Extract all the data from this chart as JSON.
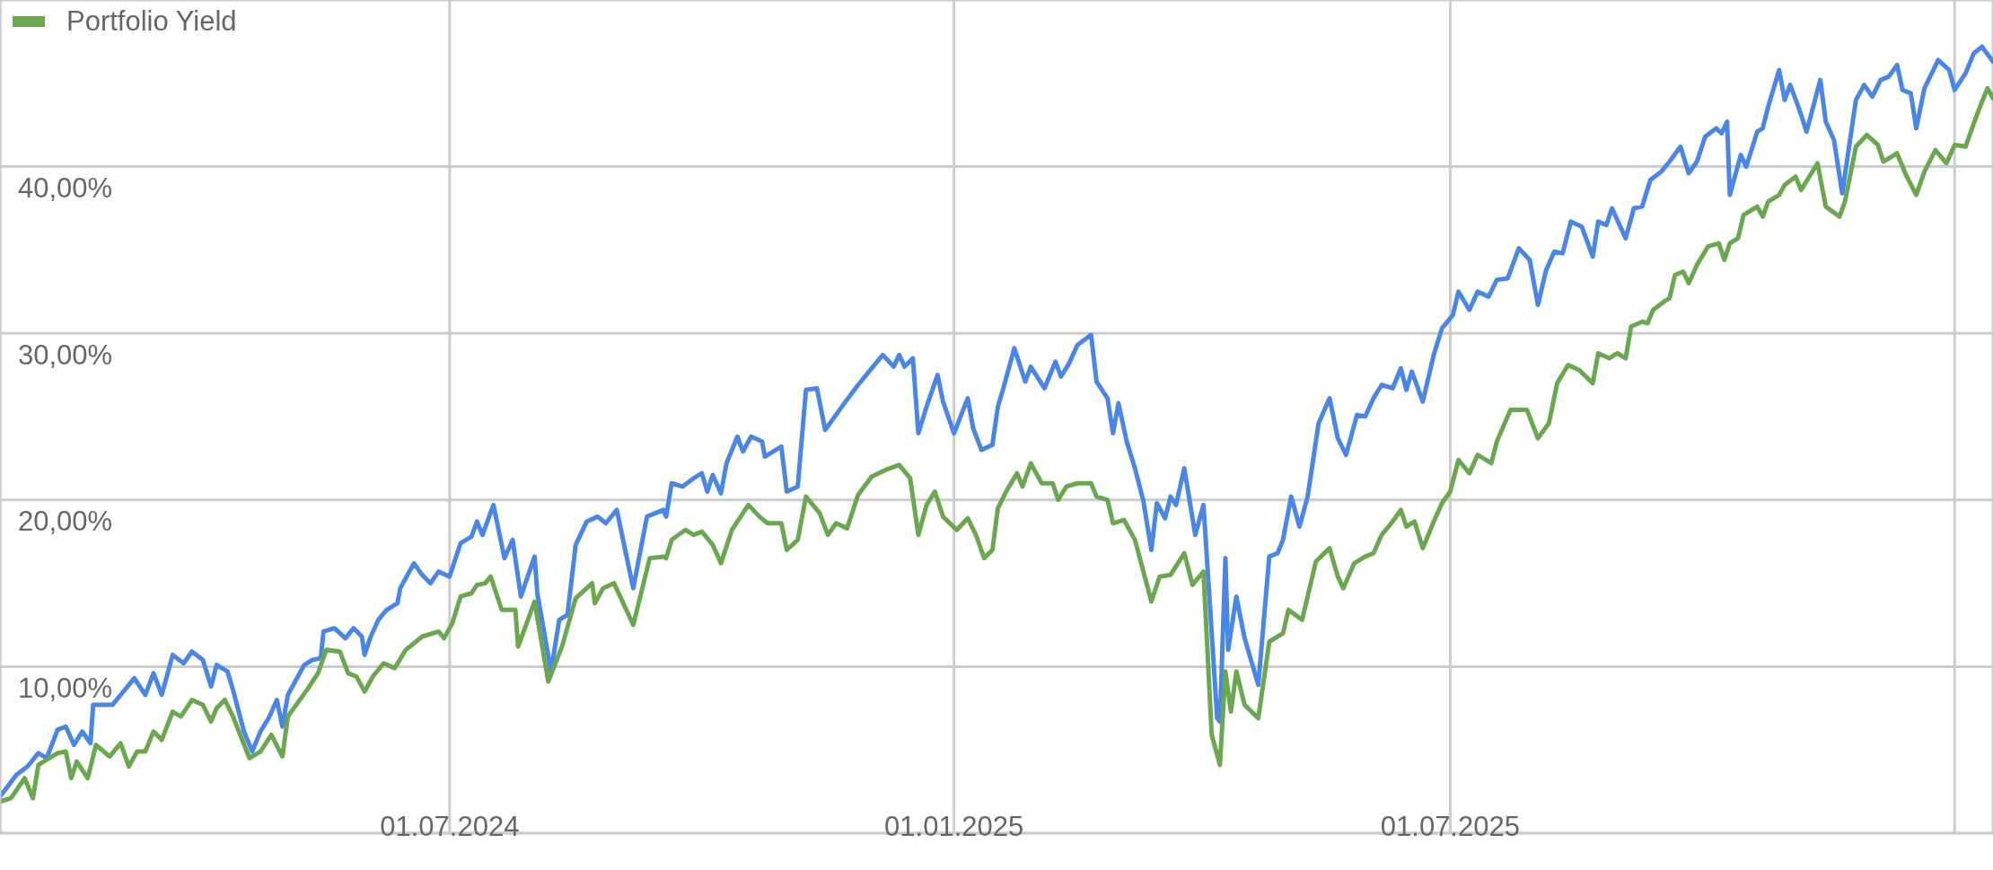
{
  "chart_data": {
    "type": "line",
    "series": [
      {
        "color": "#4a86e8",
        "x": [
          "2024-01-19",
          "2024-01-25",
          "2024-01-29",
          "2024-02-02",
          "2024-02-05",
          "2024-02-09",
          "2024-02-12",
          "2024-02-15",
          "2024-02-18",
          "2024-02-21",
          "2024-02-22",
          "2024-02-29",
          "2024-03-08",
          "2024-03-12",
          "2024-03-15",
          "2024-03-18",
          "2024-03-22",
          "2024-03-26",
          "2024-03-29",
          "2024-04-02",
          "2024-04-05",
          "2024-04-07",
          "2024-04-11",
          "2024-04-13",
          "2024-04-17",
          "2024-04-20",
          "2024-04-23",
          "2024-04-26",
          "2024-04-29",
          "2024-05-01",
          "2024-05-03",
          "2024-05-09",
          "2024-05-12",
          "2024-05-15",
          "2024-05-16",
          "2024-05-20",
          "2024-05-24",
          "2024-05-27",
          "2024-05-30",
          "2024-05-31",
          "2024-06-02",
          "2024-06-05",
          "2024-06-08",
          "2024-06-12",
          "2024-06-13",
          "2024-06-18",
          "2024-06-21",
          "2024-06-24",
          "2024-06-27",
          "2024-07-01",
          "2024-07-05",
          "2024-07-09",
          "2024-07-11",
          "2024-07-13",
          "2024-07-17",
          "2024-07-21",
          "2024-07-24",
          "2024-07-27",
          "2024-08-01",
          "2024-08-02",
          "2024-08-07",
          "2024-08-10",
          "2024-08-13",
          "2024-08-16",
          "2024-08-20",
          "2024-08-24",
          "2024-08-27",
          "2024-08-31",
          "2024-09-06",
          "2024-09-11",
          "2024-09-17",
          "2024-09-18",
          "2024-09-20",
          "2024-09-24",
          "2024-09-28",
          "2024-10-01",
          "2024-10-03",
          "2024-10-05",
          "2024-10-08",
          "2024-10-10",
          "2024-10-14",
          "2024-10-16",
          "2024-10-19",
          "2024-10-23",
          "2024-10-24",
          "2024-10-30",
          "2024-11-01",
          "2024-11-05",
          "2024-11-08",
          "2024-11-12",
          "2024-11-15",
          "2024-11-22",
          "2024-11-27",
          "2024-12-02",
          "2024-12-06",
          "2024-12-10",
          "2024-12-12",
          "2024-12-14",
          "2024-12-17",
          "2024-12-19",
          "2024-12-22",
          "2024-12-26",
          "2024-12-28",
          "2025-01-01",
          "2025-01-06",
          "2025-01-08",
          "2025-01-11",
          "2025-01-15",
          "2025-01-17",
          "2025-01-19",
          "2025-01-23",
          "2025-01-27",
          "2025-01-29",
          "2025-02-03",
          "2025-02-07",
          "2025-02-09",
          "2025-02-12",
          "2025-02-15",
          "2025-02-20",
          "2025-02-22",
          "2025-02-26",
          "2025-02-28",
          "2025-03-02",
          "2025-03-05",
          "2025-03-08",
          "2025-03-11",
          "2025-03-14",
          "2025-03-16",
          "2025-03-19",
          "2025-03-21",
          "2025-03-23",
          "2025-03-26",
          "2025-03-30",
          "2025-04-02",
          "2025-04-07",
          "2025-04-08",
          "2025-04-10",
          "2025-04-11",
          "2025-04-14",
          "2025-04-17",
          "2025-04-22",
          "2025-04-26",
          "2025-04-29",
          "2025-05-01",
          "2025-05-04",
          "2025-05-07",
          "2025-05-10",
          "2025-05-14",
          "2025-05-18",
          "2025-05-21",
          "2025-05-24",
          "2025-05-28",
          "2025-05-31",
          "2025-06-03",
          "2025-06-06",
          "2025-06-10",
          "2025-06-13",
          "2025-06-15",
          "2025-06-17",
          "2025-06-21",
          "2025-06-25",
          "2025-06-28",
          "2025-07-02",
          "2025-07-04",
          "2025-07-08",
          "2025-07-11",
          "2025-07-15",
          "2025-07-18",
          "2025-07-22",
          "2025-07-26",
          "2025-07-30",
          "2025-08-02",
          "2025-08-05",
          "2025-08-08",
          "2025-08-11",
          "2025-08-14",
          "2025-08-18",
          "2025-08-22",
          "2025-08-24",
          "2025-08-27",
          "2025-08-29",
          "2025-09-03",
          "2025-09-06",
          "2025-09-09",
          "2025-09-12",
          "2025-09-16",
          "2025-09-19",
          "2025-09-23",
          "2025-09-26",
          "2025-09-29",
          "2025-10-02",
          "2025-10-06",
          "2025-10-08",
          "2025-10-10",
          "2025-10-11",
          "2025-10-15",
          "2025-10-17",
          "2025-10-21",
          "2025-10-23",
          "2025-10-25",
          "2025-10-29",
          "2025-10-31",
          "2025-11-02",
          "2025-11-05",
          "2025-11-08",
          "2025-11-13",
          "2025-11-15",
          "2025-11-18",
          "2025-11-21",
          "2025-11-26",
          "2025-11-29",
          "2025-12-02",
          "2025-12-05",
          "2025-12-08",
          "2025-12-11",
          "2025-12-13",
          "2025-12-16",
          "2025-12-18",
          "2025-12-21",
          "2025-12-26",
          "2025-12-30",
          "2026-01-01",
          "2026-01-05",
          "2026-01-08",
          "2026-01-11",
          "2026-01-15"
        ],
        "values": [
          2.2,
          3.5,
          4.0,
          4.8,
          4.5,
          6.2,
          6.4,
          5.3,
          6.1,
          5.4,
          7.7,
          7.7,
          9.3,
          8.3,
          9.6,
          8.3,
          10.7,
          10.2,
          10.9,
          10.4,
          8.8,
          10.1,
          9.7,
          8.6,
          6.1,
          4.9,
          6.1,
          6.9,
          8.0,
          6.4,
          8.3,
          10.1,
          10.4,
          10.5,
          12.1,
          12.3,
          11.7,
          12.3,
          11.8,
          10.7,
          11.7,
          12.8,
          13.4,
          13.8,
          14.7,
          16.2,
          15.5,
          15.0,
          15.7,
          15.4,
          17.4,
          17.8,
          18.7,
          17.9,
          19.7,
          16.5,
          17.6,
          14.2,
          16.6,
          14.4,
          9.7,
          12.8,
          13.1,
          17.3,
          18.7,
          19.0,
          18.6,
          19.4,
          14.7,
          19.0,
          19.4,
          19.0,
          21.0,
          20.8,
          21.3,
          21.6,
          20.5,
          21.5,
          20.4,
          22.2,
          23.8,
          22.9,
          23.8,
          23.5,
          22.6,
          23.2,
          20.5,
          20.8,
          26.6,
          26.7,
          24.2,
          25.8,
          26.9,
          27.9,
          28.7,
          28.0,
          28.7,
          28.0,
          28.5,
          24.0,
          25.6,
          27.5,
          25.9,
          24.0,
          26.1,
          24.3,
          23.0,
          23.3,
          25.6,
          26.7,
          29.1,
          27.1,
          28.0,
          26.7,
          28.3,
          27.4,
          28.2,
          29.3,
          29.9,
          27.1,
          26.1,
          24.0,
          25.8,
          23.5,
          21.9,
          20.0,
          17.0,
          19.8,
          18.9,
          20.2,
          19.7,
          21.9,
          17.9,
          19.7,
          6.9,
          6.7,
          16.5,
          11.0,
          14.2,
          11.7,
          8.9,
          16.6,
          16.8,
          17.6,
          20.2,
          18.4,
          20.2,
          24.6,
          26.1,
          23.7,
          22.7,
          25.1,
          25.0,
          26.1,
          26.9,
          26.7,
          27.9,
          26.6,
          27.7,
          25.9,
          28.7,
          30.3,
          31.1,
          32.5,
          31.4,
          32.5,
          32.2,
          33.2,
          33.3,
          35.1,
          34.4,
          31.7,
          33.8,
          34.9,
          34.8,
          36.7,
          36.4,
          34.6,
          36.7,
          36.5,
          37.5,
          35.7,
          37.5,
          37.6,
          39.2,
          39.7,
          40.3,
          41.2,
          39.6,
          40.3,
          41.8,
          42.3,
          42.0,
          42.7,
          38.3,
          40.7,
          40.0,
          42.1,
          42.3,
          43.6,
          45.8,
          44.0,
          44.9,
          43.6,
          42.1,
          45.2,
          42.7,
          41.6,
          38.4,
          44.0,
          44.9,
          44.2,
          45.2,
          45.4,
          46.1,
          44.6,
          44.4,
          42.3,
          44.7,
          46.4,
          45.8,
          44.6,
          45.6,
          46.8,
          47.2,
          46.3
        ]
      },
      {
        "name": "Portfolio Yield",
        "color": "#6aa84f",
        "x": [
          "2024-01-19",
          "2024-01-23",
          "2024-01-28",
          "2024-01-31",
          "2024-02-02",
          "2024-02-06",
          "2024-02-09",
          "2024-02-12",
          "2024-02-14",
          "2024-02-16",
          "2024-02-20",
          "2024-02-23",
          "2024-02-28",
          "2024-03-03",
          "2024-03-06",
          "2024-03-09",
          "2024-03-12",
          "2024-03-15",
          "2024-03-18",
          "2024-03-22",
          "2024-03-25",
          "2024-03-29",
          "2024-04-02",
          "2024-04-05",
          "2024-04-07",
          "2024-04-10",
          "2024-04-13",
          "2024-04-19",
          "2024-04-23",
          "2024-04-27",
          "2024-05-01",
          "2024-05-03",
          "2024-05-10",
          "2024-05-14",
          "2024-05-17",
          "2024-05-22",
          "2024-05-25",
          "2024-05-28",
          "2024-05-31",
          "2024-06-03",
          "2024-06-07",
          "2024-06-11",
          "2024-06-15",
          "2024-06-21",
          "2024-06-27",
          "2024-06-29",
          "2024-07-02",
          "2024-07-05",
          "2024-07-09",
          "2024-07-11",
          "2024-07-14",
          "2024-07-16",
          "2024-07-20",
          "2024-07-25",
          "2024-07-26",
          "2024-08-01",
          "2024-08-06",
          "2024-08-11",
          "2024-08-16",
          "2024-08-22",
          "2024-08-23",
          "2024-08-26",
          "2024-08-30",
          "2024-09-06",
          "2024-09-12",
          "2024-09-17",
          "2024-09-18",
          "2024-09-20",
          "2024-09-25",
          "2024-09-28",
          "2024-10-01",
          "2024-10-05",
          "2024-10-08",
          "2024-10-12",
          "2024-10-18",
          "2024-10-22",
          "2024-10-25",
          "2024-10-30",
          "2024-11-01",
          "2024-11-05",
          "2024-11-08",
          "2024-11-13",
          "2024-11-16",
          "2024-11-19",
          "2024-11-23",
          "2024-11-27",
          "2024-12-02",
          "2024-12-07",
          "2024-12-12",
          "2024-12-16",
          "2024-12-19",
          "2024-12-22",
          "2024-12-25",
          "2024-12-28",
          "2025-01-02",
          "2025-01-06",
          "2025-01-09",
          "2025-01-12",
          "2025-01-15",
          "2025-01-17",
          "2025-01-20",
          "2025-01-24",
          "2025-01-26",
          "2025-01-29",
          "2025-02-02",
          "2025-02-06",
          "2025-02-08",
          "2025-02-11",
          "2025-02-15",
          "2025-02-20",
          "2025-02-22",
          "2025-02-26",
          "2025-02-28",
          "2025-03-04",
          "2025-03-08",
          "2025-03-14",
          "2025-03-17",
          "2025-03-21",
          "2025-03-26",
          "2025-03-29",
          "2025-04-02",
          "2025-04-05",
          "2025-04-08",
          "2025-04-10",
          "2025-04-12",
          "2025-04-14",
          "2025-04-17",
          "2025-04-22",
          "2025-04-26",
          "2025-05-01",
          "2025-05-03",
          "2025-05-08",
          "2025-05-13",
          "2025-05-18",
          "2025-05-21",
          "2025-05-23",
          "2025-05-27",
          "2025-05-31",
          "2025-06-03",
          "2025-06-06",
          "2025-06-10",
          "2025-06-13",
          "2025-06-15",
          "2025-06-18",
          "2025-06-21",
          "2025-06-25",
          "2025-06-28",
          "2025-07-01",
          "2025-07-04",
          "2025-07-08",
          "2025-07-11",
          "2025-07-16",
          "2025-07-18",
          "2025-07-23",
          "2025-07-29",
          "2025-08-02",
          "2025-08-06",
          "2025-08-09",
          "2025-08-13",
          "2025-08-17",
          "2025-08-22",
          "2025-08-24",
          "2025-08-28",
          "2025-08-31",
          "2025-09-03",
          "2025-09-05",
          "2025-09-09",
          "2025-09-11",
          "2025-09-13",
          "2025-09-17",
          "2025-09-19",
          "2025-09-21",
          "2025-09-24",
          "2025-09-26",
          "2025-09-29",
          "2025-10-03",
          "2025-10-07",
          "2025-10-09",
          "2025-10-11",
          "2025-10-14",
          "2025-10-16",
          "2025-10-21",
          "2025-10-23",
          "2025-10-25",
          "2025-10-29",
          "2025-10-31",
          "2025-11-04",
          "2025-11-06",
          "2025-11-09",
          "2025-11-12",
          "2025-11-15",
          "2025-11-20",
          "2025-11-22",
          "2025-11-26",
          "2025-11-30",
          "2025-12-04",
          "2025-12-06",
          "2025-12-11",
          "2025-12-14",
          "2025-12-18",
          "2025-12-21",
          "2025-12-25",
          "2025-12-29",
          "2026-01-01",
          "2026-01-05",
          "2026-01-08",
          "2026-01-11",
          "2026-01-13",
          "2026-01-15"
        ],
        "values": [
          1.9,
          2.1,
          3.3,
          2.1,
          4.1,
          4.5,
          4.8,
          4.9,
          3.3,
          4.3,
          3.3,
          5.3,
          4.6,
          5.4,
          4.0,
          4.9,
          4.9,
          6.1,
          5.6,
          7.3,
          7.0,
          8.0,
          7.7,
          6.7,
          7.5,
          8.0,
          7.0,
          4.5,
          4.9,
          5.9,
          4.6,
          7.0,
          8.6,
          9.6,
          11.0,
          10.9,
          9.6,
          9.4,
          8.5,
          9.4,
          10.2,
          9.9,
          11.0,
          11.8,
          12.1,
          11.7,
          12.6,
          14.2,
          14.4,
          14.9,
          15.0,
          15.4,
          13.4,
          13.4,
          11.2,
          13.9,
          9.1,
          11.2,
          14.1,
          15.0,
          13.8,
          14.7,
          15.0,
          12.5,
          16.5,
          16.6,
          16.5,
          17.6,
          18.2,
          17.9,
          18.1,
          17.3,
          16.2,
          18.2,
          19.7,
          19.0,
          18.6,
          18.6,
          17.0,
          17.6,
          20.2,
          19.2,
          17.9,
          18.6,
          18.3,
          20.3,
          21.4,
          21.8,
          22.1,
          21.3,
          17.9,
          19.7,
          20.5,
          19.0,
          18.2,
          18.9,
          17.9,
          16.5,
          17.0,
          19.5,
          20.5,
          21.6,
          20.8,
          22.2,
          21.0,
          21.0,
          20.0,
          20.8,
          21.0,
          21.0,
          20.2,
          20.0,
          18.6,
          18.8,
          17.6,
          13.9,
          15.4,
          15.5,
          16.8,
          14.9,
          15.7,
          5.9,
          4.1,
          9.7,
          7.3,
          9.7,
          7.7,
          6.9,
          11.5,
          12.0,
          13.4,
          12.8,
          16.3,
          17.1,
          15.4,
          14.7,
          16.2,
          16.6,
          16.8,
          17.9,
          18.7,
          19.4,
          18.4,
          18.7,
          17.1,
          18.7,
          19.8,
          20.5,
          22.4,
          21.6,
          22.7,
          22.2,
          23.5,
          25.4,
          25.4,
          23.7,
          24.6,
          27.0,
          28.1,
          27.8,
          27.0,
          28.8,
          28.5,
          28.8,
          28.5,
          30.4,
          30.7,
          30.6,
          31.4,
          31.9,
          32.1,
          33.5,
          33.7,
          33.0,
          34.1,
          35.2,
          35.4,
          34.4,
          35.4,
          35.7,
          37.1,
          37.6,
          37.0,
          37.9,
          38.3,
          38.9,
          39.4,
          38.6,
          39.4,
          40.2,
          37.6,
          37.0,
          37.9,
          41.2,
          41.9,
          41.3,
          40.3,
          40.8,
          39.6,
          38.3,
          39.7,
          41.0,
          40.2,
          41.3,
          41.2,
          42.6,
          43.9,
          44.7,
          44.1
        ]
      }
    ],
    "xlim": [
      "2024-01-19",
      "2026-01-15"
    ],
    "xticks": [
      {
        "value": "2024-07-01",
        "label": "01.07.2024"
      },
      {
        "value": "2025-01-01",
        "label": "01.01.2025"
      },
      {
        "value": "2025-07-01",
        "label": "01.07.2025"
      },
      {
        "value": "2026-01-01",
        "label": null
      }
    ],
    "ylim": [
      0,
      50
    ],
    "yticks": [
      {
        "value": 10,
        "label": "10,00%"
      },
      {
        "value": 20,
        "label": "20,00%"
      },
      {
        "value": 30,
        "label": "30,00%"
      },
      {
        "value": 40,
        "label": "40,00%"
      }
    ],
    "grid": true,
    "legend": "top left",
    "marker": "none",
    "line_style": "solid"
  }
}
